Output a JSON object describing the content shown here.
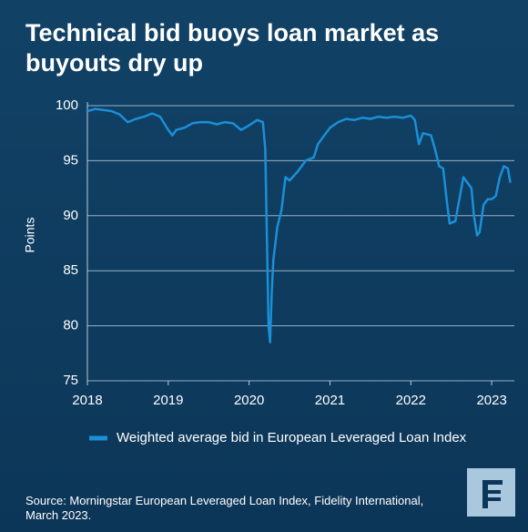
{
  "chart_data": {
    "type": "line",
    "title": "Technical bid buoys loan market as buyouts dry up",
    "ylabel": "Points",
    "source": "Source: Morningstar European Leveraged Loan Index, Fidelity International, March 2023.",
    "x": [
      2018.0,
      2018.1,
      2018.2,
      2018.3,
      2018.4,
      2018.5,
      2018.6,
      2018.7,
      2018.8,
      2018.9,
      2019.0,
      2019.05,
      2019.1,
      2019.2,
      2019.3,
      2019.4,
      2019.5,
      2019.6,
      2019.7,
      2019.8,
      2019.9,
      2020.0,
      2020.1,
      2020.17,
      2020.2,
      2020.22,
      2020.24,
      2020.26,
      2020.28,
      2020.3,
      2020.35,
      2020.4,
      2020.45,
      2020.5,
      2020.6,
      2020.7,
      2020.8,
      2020.85,
      2020.9,
      2021.0,
      2021.1,
      2021.2,
      2021.3,
      2021.4,
      2021.5,
      2021.6,
      2021.7,
      2021.8,
      2021.9,
      2022.0,
      2022.05,
      2022.1,
      2022.15,
      2022.25,
      2022.3,
      2022.35,
      2022.4,
      2022.45,
      2022.48,
      2022.55,
      2022.6,
      2022.65,
      2022.7,
      2022.75,
      2022.78,
      2022.82,
      2022.85,
      2022.9,
      2022.95,
      2023.0,
      2023.05,
      2023.1,
      2023.15,
      2023.2,
      2023.23
    ],
    "series": [
      {
        "name": "Weighted average bid in European Leveraged Loan Index",
        "color": "#1b8fd8",
        "values": [
          99.5,
          99.7,
          99.6,
          99.5,
          99.2,
          98.5,
          98.8,
          99.0,
          99.3,
          99.0,
          97.8,
          97.3,
          97.8,
          98.0,
          98.4,
          98.5,
          98.5,
          98.3,
          98.5,
          98.4,
          97.8,
          98.2,
          98.7,
          98.5,
          96.0,
          88.0,
          80.0,
          78.5,
          83.0,
          86.0,
          89.0,
          90.5,
          93.5,
          93.2,
          94.0,
          95.0,
          95.3,
          96.5,
          97.0,
          98.0,
          98.5,
          98.8,
          98.7,
          98.9,
          98.8,
          99.0,
          98.9,
          99.0,
          98.9,
          99.1,
          98.7,
          96.5,
          97.5,
          97.3,
          96.0,
          94.5,
          94.3,
          91.0,
          89.3,
          89.5,
          91.5,
          93.5,
          93.0,
          92.5,
          90.0,
          88.2,
          88.5,
          91.0,
          91.5,
          91.5,
          91.8,
          93.5,
          94.5,
          94.3,
          93.0
        ]
      }
    ],
    "xlim": [
      2018,
      2023.28
    ],
    "xticks": [
      2018,
      2019,
      2020,
      2021,
      2022,
      2023
    ],
    "ylim": [
      75,
      100
    ],
    "yticks": [
      75,
      80,
      85,
      90,
      95,
      100
    ],
    "grid": true
  }
}
